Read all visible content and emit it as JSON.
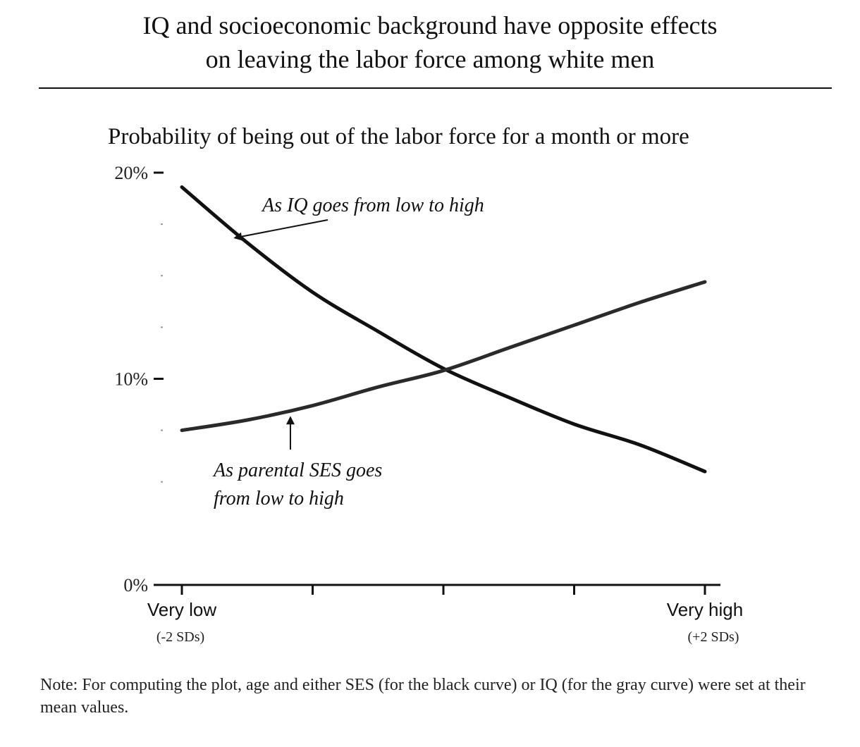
{
  "title_line1": "IQ and socioeconomic background have opposite effects",
  "title_line2": "on leaving the labor force among white men",
  "note": "Note: For computing the plot, age and either SES (for the black curve) or IQ (for the gray curve) were set at their mean values.",
  "chart_data": {
    "type": "line",
    "title": "",
    "subtitle": "Probability of being out of the labor force for a month or more",
    "xlabel": "",
    "ylabel": "",
    "x": [
      -2,
      -1.5,
      -1,
      -0.5,
      0,
      0.5,
      1,
      1.5,
      2
    ],
    "xlim": [
      -2,
      2
    ],
    "ylim": [
      0,
      20
    ],
    "y_ticks": [
      {
        "value": 0,
        "label": "0%"
      },
      {
        "value": 10,
        "label": "10%"
      },
      {
        "value": 20,
        "label": "20%"
      }
    ],
    "x_category_labels": [
      {
        "x": -2,
        "label": "Very low",
        "sub": "(-2 SDs)"
      },
      {
        "x": 2,
        "label": "Very high",
        "sub": "(+2 SDs)"
      }
    ],
    "x_ticks": [
      -2,
      -1,
      0,
      1,
      2
    ],
    "grid": false,
    "series": [
      {
        "values": [
          19.3,
          16.6,
          14.2,
          12.3,
          10.5,
          9.1,
          7.8,
          6.8,
          5.5
        ],
        "color": "#111111"
      },
      {
        "values": [
          7.5,
          8.0,
          8.7,
          9.6,
          10.4,
          11.5,
          12.6,
          13.7,
          14.7
        ],
        "color": "#2a2a2a"
      }
    ],
    "annotations": [
      {
        "text": "As IQ goes from low to high",
        "x": -1.6,
        "y": 16.7
      },
      {
        "text_lines": [
          "As parental SES goes",
          "from low to high"
        ],
        "x": -1.17,
        "y": 8.4
      }
    ]
  }
}
